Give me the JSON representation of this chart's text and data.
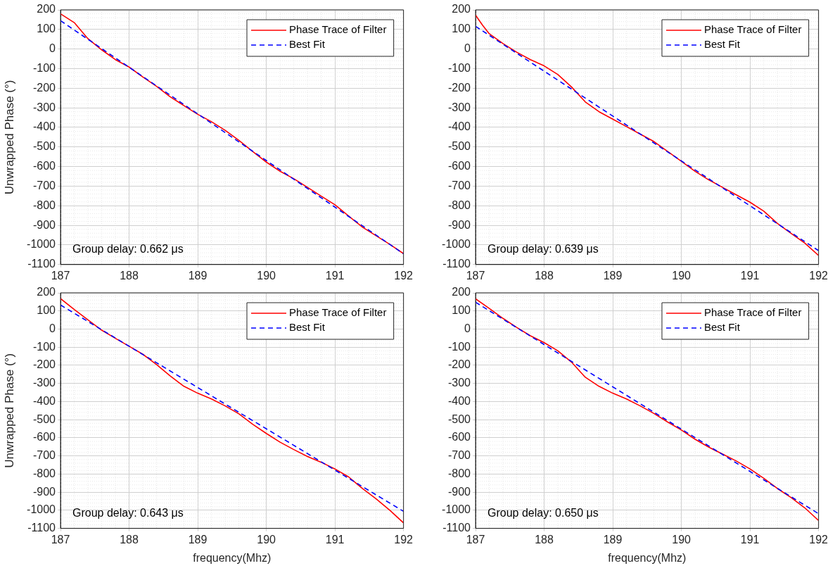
{
  "chart_data": [
    {
      "type": "line",
      "ylabel": "Unwrapped Phase (°)",
      "xlim": [
        187,
        192
      ],
      "xticks": [
        187,
        188,
        189,
        190,
        191,
        192
      ],
      "ylim": [
        -1100,
        200
      ],
      "yticks": [
        -1100,
        -1000,
        -900,
        -800,
        -700,
        -600,
        -500,
        -400,
        -300,
        -200,
        -100,
        0,
        100,
        200
      ],
      "grid": true,
      "legend": "top right",
      "tick_labels": "xy",
      "annotations": [
        "Group delay: 0.662 μs"
      ],
      "series": [
        {
          "name": "Phase Trace of Filter",
          "color": "#ff0000",
          "line_style": "solid",
          "x": [
            187,
            187.2,
            187.4,
            187.6,
            187.8,
            188,
            188.2,
            188.4,
            188.6,
            188.8,
            189,
            189.2,
            189.4,
            189.6,
            189.8,
            190,
            190.2,
            190.4,
            190.6,
            190.8,
            191,
            191.2,
            191.4,
            191.6,
            191.8,
            192
          ],
          "values": [
            180,
            135,
            53,
            -4,
            -54,
            -92,
            -143,
            -190,
            -244,
            -289,
            -333,
            -371,
            -415,
            -466,
            -523,
            -577,
            -624,
            -662,
            -706,
            -751,
            -795,
            -852,
            -909,
            -953,
            -997,
            -1044
          ]
        },
        {
          "name": "Best Fit",
          "color": "#0000ff",
          "line_style": "dashed",
          "x": [
            187,
            192
          ],
          "values": [
            145,
            -1045
          ]
        }
      ]
    },
    {
      "type": "line",
      "xlim": [
        187,
        192
      ],
      "xticks": [
        187,
        188,
        189,
        190,
        191,
        192
      ],
      "ylim": [
        -1100,
        200
      ],
      "yticks": [
        -1100,
        -1000,
        -900,
        -800,
        -700,
        -600,
        -500,
        -400,
        -300,
        -200,
        -100,
        0,
        100,
        200
      ],
      "grid": true,
      "legend": "top right",
      "annotations": [
        "Group delay: 0.639 μs"
      ],
      "series": [
        {
          "name": "Phase Trace of Filter",
          "color": "#ff0000",
          "line_style": "solid",
          "x": [
            187,
            187.1,
            187.2,
            187.4,
            187.6,
            187.8,
            188,
            188.2,
            188.4,
            188.6,
            188.8,
            189,
            189.2,
            189.4,
            189.6,
            189.8,
            190,
            190.2,
            190.4,
            190.6,
            190.8,
            191,
            191.2,
            191.4,
            191.6,
            191.8,
            192
          ],
          "values": [
            173,
            123,
            78,
            28,
            -16,
            -54,
            -86,
            -130,
            -194,
            -270,
            -320,
            -358,
            -396,
            -434,
            -472,
            -523,
            -573,
            -624,
            -668,
            -706,
            -744,
            -782,
            -827,
            -890,
            -941,
            -991,
            -1054
          ]
        },
        {
          "name": "Best Fit",
          "color": "#0000ff",
          "line_style": "dashed",
          "x": [
            187,
            192
          ],
          "values": [
            116,
            -1029
          ]
        }
      ]
    },
    {
      "type": "line",
      "xlabel": "frequency(Mhz)",
      "ylabel": "Unwrapped Phase (°)",
      "xlim": [
        187,
        192
      ],
      "xticks": [
        187,
        188,
        189,
        190,
        191,
        192
      ],
      "ylim": [
        -1100,
        200
      ],
      "yticks": [
        -1100,
        -1000,
        -900,
        -800,
        -700,
        -600,
        -500,
        -400,
        -300,
        -200,
        -100,
        0,
        100,
        200
      ],
      "grid": true,
      "legend": "top right",
      "annotations": [
        "Group delay: 0.643 μs"
      ],
      "series": [
        {
          "name": "Phase Trace of Filter",
          "color": "#ff0000",
          "line_style": "solid",
          "x": [
            187,
            187.2,
            187.4,
            187.6,
            187.8,
            188,
            188.2,
            188.4,
            188.6,
            188.8,
            189,
            189.2,
            189.4,
            189.6,
            189.8,
            190,
            190.2,
            190.4,
            190.6,
            190.8,
            191,
            191.2,
            191.4,
            191.6,
            191.8,
            192
          ],
          "values": [
            168,
            108,
            51,
            -6,
            -51,
            -95,
            -139,
            -196,
            -259,
            -316,
            -354,
            -386,
            -424,
            -468,
            -525,
            -576,
            -624,
            -665,
            -703,
            -735,
            -772,
            -816,
            -880,
            -937,
            -1000,
            -1070
          ]
        },
        {
          "name": "Best Fit",
          "color": "#0000ff",
          "line_style": "dashed",
          "x": [
            187,
            192
          ],
          "values": [
            133,
            -1006
          ]
        }
      ]
    },
    {
      "type": "line",
      "xlabel": "frequency(Mhz)",
      "xlim": [
        187,
        192
      ],
      "xticks": [
        187,
        188,
        189,
        190,
        191,
        192
      ],
      "ylim": [
        -1100,
        200
      ],
      "yticks": [
        -1100,
        -1000,
        -900,
        -800,
        -700,
        -600,
        -500,
        -400,
        -300,
        -200,
        -100,
        0,
        100,
        200
      ],
      "grid": true,
      "legend": "top right",
      "annotations": [
        "Group delay: 0.650 μs"
      ],
      "series": [
        {
          "name": "Phase Trace of Filter",
          "color": "#ff0000",
          "line_style": "solid",
          "x": [
            187,
            187.2,
            187.4,
            187.6,
            187.8,
            188,
            188.2,
            188.4,
            188.6,
            188.8,
            189,
            189.2,
            189.4,
            189.6,
            189.8,
            190,
            190.2,
            190.4,
            190.6,
            190.8,
            191,
            191.2,
            191.4,
            191.6,
            191.8,
            192
          ],
          "values": [
            167,
            114,
            59,
            9,
            -37,
            -75,
            -120,
            -183,
            -266,
            -316,
            -354,
            -386,
            -424,
            -466,
            -513,
            -557,
            -608,
            -652,
            -690,
            -728,
            -772,
            -823,
            -880,
            -930,
            -987,
            -1057
          ]
        },
        {
          "name": "Best Fit",
          "color": "#0000ff",
          "line_style": "dashed",
          "x": [
            187,
            192
          ],
          "values": [
            148,
            -1019
          ]
        }
      ]
    }
  ]
}
